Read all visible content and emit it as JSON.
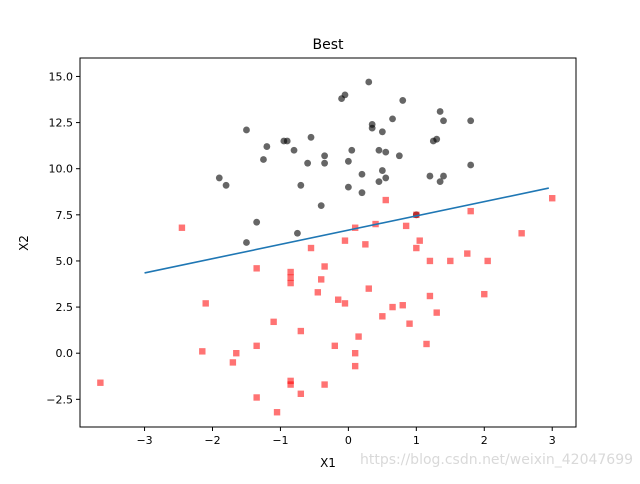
{
  "chart_data": {
    "type": "scatter",
    "title": "Best",
    "xlabel": "X1",
    "ylabel": "X2",
    "xlim": [
      -3.95,
      3.35
    ],
    "ylim": [
      -4.0,
      16.0
    ],
    "x_ticks": [
      -3,
      -2,
      -1,
      0,
      1,
      2,
      3
    ],
    "x_tick_labels": [
      "−3",
      "−2",
      "−1",
      "0",
      "1",
      "2",
      "3"
    ],
    "y_ticks": [
      -2.5,
      0.0,
      2.5,
      5.0,
      7.5,
      10.0,
      12.5,
      15.0
    ],
    "y_tick_labels": [
      "−2.5",
      "0.0",
      "2.5",
      "5.0",
      "7.5",
      "10.0",
      "12.5",
      "15.0"
    ],
    "grid": false,
    "series": [
      {
        "marker": "circle",
        "color": "#000000",
        "opacity": 0.6,
        "points": [
          [
            0.3,
            14.7
          ],
          [
            -0.05,
            14.0
          ],
          [
            -0.1,
            13.8
          ],
          [
            0.8,
            13.7
          ],
          [
            1.35,
            13.1
          ],
          [
            1.4,
            12.6
          ],
          [
            1.8,
            12.6
          ],
          [
            0.65,
            12.7
          ],
          [
            0.35,
            12.4
          ],
          [
            0.35,
            12.2
          ],
          [
            -1.5,
            12.1
          ],
          [
            0.5,
            12.0
          ],
          [
            -0.55,
            11.7
          ],
          [
            -0.95,
            11.5
          ],
          [
            -0.9,
            11.5
          ],
          [
            1.25,
            11.5
          ],
          [
            1.3,
            11.6
          ],
          [
            -1.2,
            11.2
          ],
          [
            -0.8,
            11.0
          ],
          [
            0.05,
            11.0
          ],
          [
            0.45,
            11.0
          ],
          [
            0.55,
            10.9
          ],
          [
            0.75,
            10.7
          ],
          [
            -0.35,
            10.7
          ],
          [
            -1.25,
            10.5
          ],
          [
            -0.6,
            10.3
          ],
          [
            -0.35,
            10.3
          ],
          [
            0.0,
            10.4
          ],
          [
            1.8,
            10.2
          ],
          [
            0.5,
            9.9
          ],
          [
            0.2,
            9.7
          ],
          [
            0.55,
            9.5
          ],
          [
            -1.9,
            9.5
          ],
          [
            1.2,
            9.6
          ],
          [
            1.4,
            9.6
          ],
          [
            1.35,
            9.3
          ],
          [
            0.45,
            9.3
          ],
          [
            -1.8,
            9.1
          ],
          [
            -0.7,
            9.1
          ],
          [
            0.0,
            9.0
          ],
          [
            0.2,
            8.7
          ],
          [
            -0.4,
            8.0
          ],
          [
            1.0,
            7.5
          ],
          [
            -1.35,
            7.1
          ],
          [
            -0.75,
            6.5
          ],
          [
            -1.5,
            6.0
          ]
        ]
      },
      {
        "marker": "square",
        "color": "#ff0000",
        "opacity": 0.55,
        "points": [
          [
            0.55,
            8.3
          ],
          [
            3.0,
            8.4
          ],
          [
            1.8,
            7.7
          ],
          [
            1.0,
            7.5
          ],
          [
            -2.45,
            6.8
          ],
          [
            0.1,
            6.8
          ],
          [
            0.4,
            7.0
          ],
          [
            0.85,
            6.9
          ],
          [
            2.55,
            6.5
          ],
          [
            0.25,
            5.9
          ],
          [
            -0.05,
            6.1
          ],
          [
            -0.55,
            5.7
          ],
          [
            1.05,
            6.1
          ],
          [
            1.0,
            5.7
          ],
          [
            1.75,
            5.4
          ],
          [
            1.2,
            5.0
          ],
          [
            1.5,
            5.0
          ],
          [
            2.05,
            5.0
          ],
          [
            -1.35,
            4.6
          ],
          [
            -0.35,
            4.7
          ],
          [
            -0.85,
            4.4
          ],
          [
            -0.85,
            4.1
          ],
          [
            -0.85,
            3.8
          ],
          [
            -0.4,
            4.0
          ],
          [
            0.3,
            3.5
          ],
          [
            -0.45,
            3.3
          ],
          [
            2.0,
            3.2
          ],
          [
            1.2,
            3.1
          ],
          [
            -0.15,
            2.9
          ],
          [
            -0.05,
            2.7
          ],
          [
            -2.1,
            2.7
          ],
          [
            0.8,
            2.6
          ],
          [
            0.65,
            2.5
          ],
          [
            1.3,
            2.2
          ],
          [
            0.5,
            2.0
          ],
          [
            -1.1,
            1.7
          ],
          [
            0.9,
            1.6
          ],
          [
            -0.7,
            1.2
          ],
          [
            0.15,
            0.9
          ],
          [
            1.15,
            0.5
          ],
          [
            -1.35,
            0.4
          ],
          [
            -0.2,
            0.4
          ],
          [
            -2.15,
            0.1
          ],
          [
            -1.65,
            0.0
          ],
          [
            0.1,
            0.0
          ],
          [
            -1.7,
            -0.5
          ],
          [
            0.1,
            -0.7
          ],
          [
            -3.65,
            -1.6
          ],
          [
            -0.85,
            -1.5
          ],
          [
            -0.85,
            -1.7
          ],
          [
            -0.35,
            -1.7
          ],
          [
            -0.7,
            -2.2
          ],
          [
            -1.35,
            -2.4
          ],
          [
            -1.05,
            -3.2
          ]
        ]
      },
      {
        "marker": "line",
        "color": "#1f77b4",
        "points": [
          [
            -3.0,
            4.35
          ],
          [
            2.95,
            8.95
          ]
        ]
      }
    ]
  },
  "watermark": "https://blog.csdn.net/weixin_42047699"
}
